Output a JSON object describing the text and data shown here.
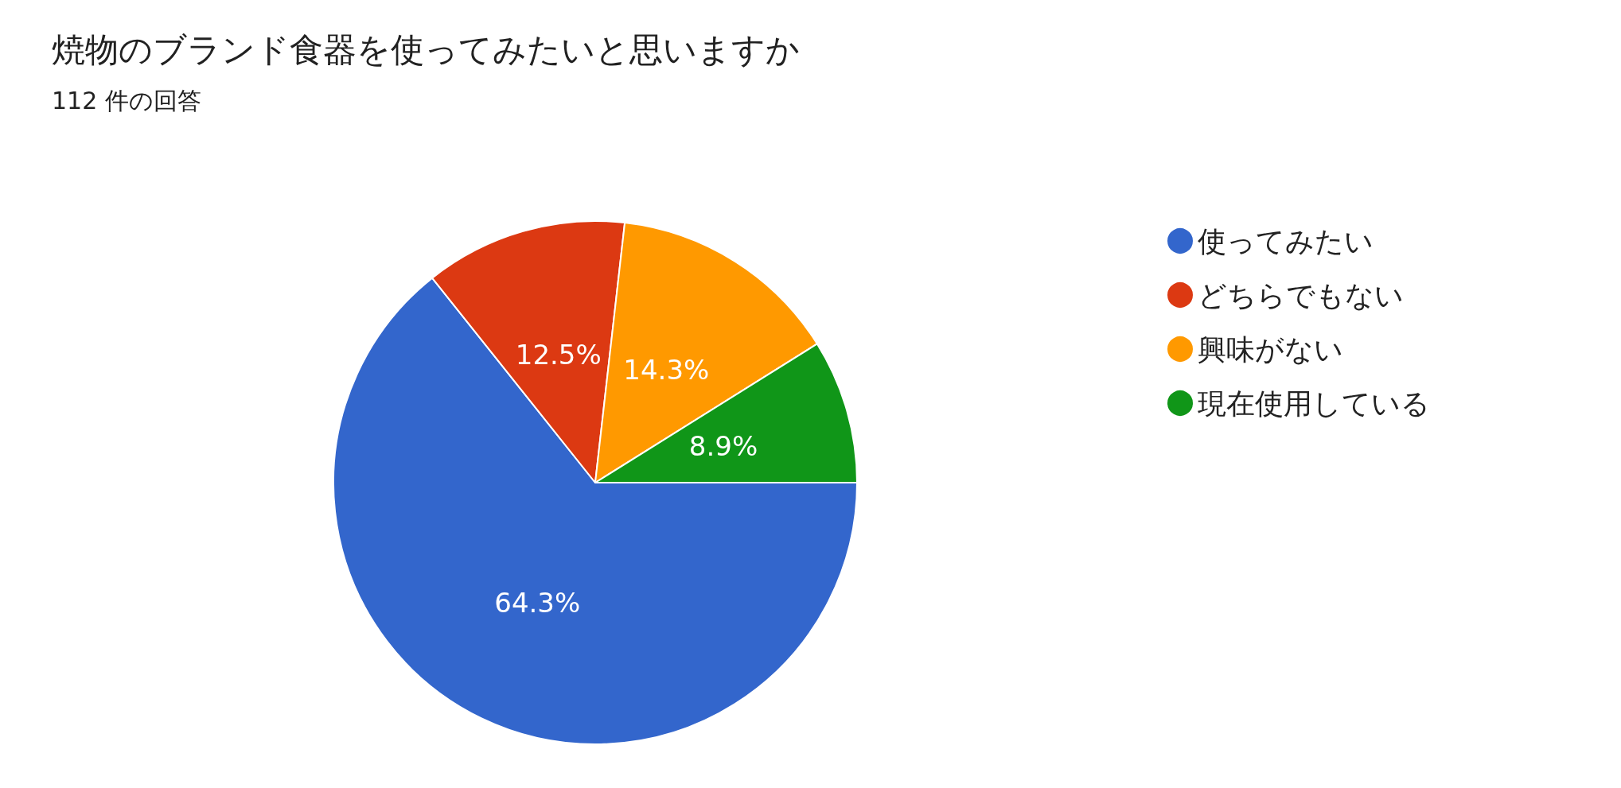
{
  "chart_data": {
    "type": "pie",
    "title": "焼物のブランド食器を使ってみたいと思いますか",
    "subtitle": "112 件の回答",
    "categories": [
      "使ってみたい",
      "どちらでもない",
      "興味がない",
      "現在使用している"
    ],
    "values": [
      64.3,
      12.5,
      14.3,
      8.9
    ],
    "value_labels": [
      "64.3%",
      "12.5%",
      "14.3%",
      "8.9%"
    ],
    "colors": [
      "#3366cc",
      "#dc3912",
      "#ff9900",
      "#109618"
    ],
    "legend": "right"
  }
}
